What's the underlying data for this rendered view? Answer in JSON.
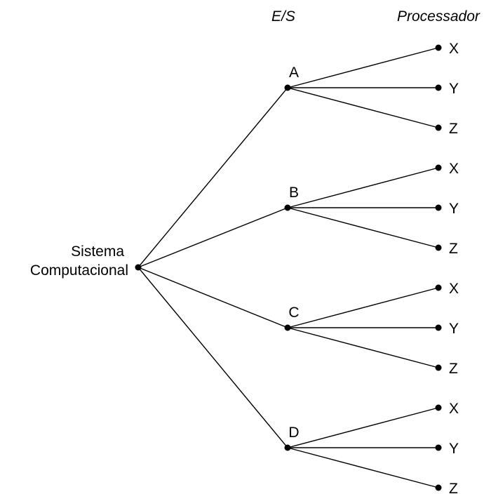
{
  "headers": {
    "level1": "E/S",
    "level2": "Processador"
  },
  "root": {
    "label_line1": "Sistema",
    "label_line2": "Computacional"
  },
  "level1_nodes": [
    {
      "label": "A",
      "children": [
        "X",
        "Y",
        "Z"
      ]
    },
    {
      "label": "B",
      "children": [
        "X",
        "Y",
        "Z"
      ]
    },
    {
      "label": "C",
      "children": [
        "X",
        "Y",
        "Z"
      ]
    },
    {
      "label": "D",
      "children": [
        "X",
        "Y",
        "Z"
      ]
    }
  ]
}
